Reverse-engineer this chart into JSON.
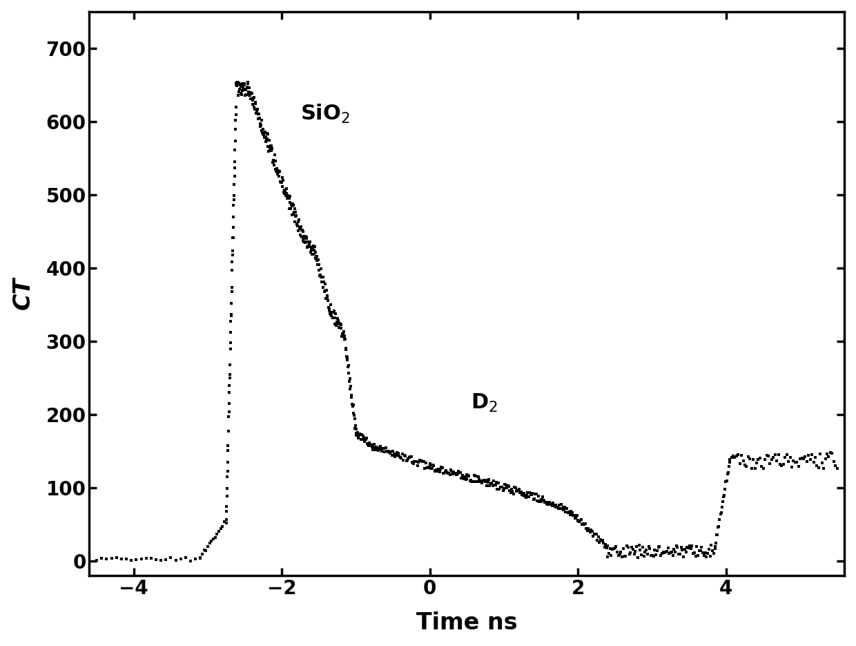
{
  "title": "",
  "xlabel": "Time ns",
  "ylabel": "CT",
  "xlim": [
    -4.6,
    5.6
  ],
  "ylim": [
    -20,
    750
  ],
  "xticks": [
    -4,
    -2,
    0,
    2,
    4
  ],
  "yticks": [
    0,
    100,
    200,
    300,
    400,
    500,
    600,
    700
  ],
  "color": "#000000",
  "background": "#ffffff",
  "xlabel_fontsize": 24,
  "ylabel_fontsize": 24,
  "tick_fontsize": 20,
  "annotation_fontsize": 22,
  "sio2_x": -1.75,
  "sio2_y": 610,
  "d2_x": 0.55,
  "d2_y": 215
}
